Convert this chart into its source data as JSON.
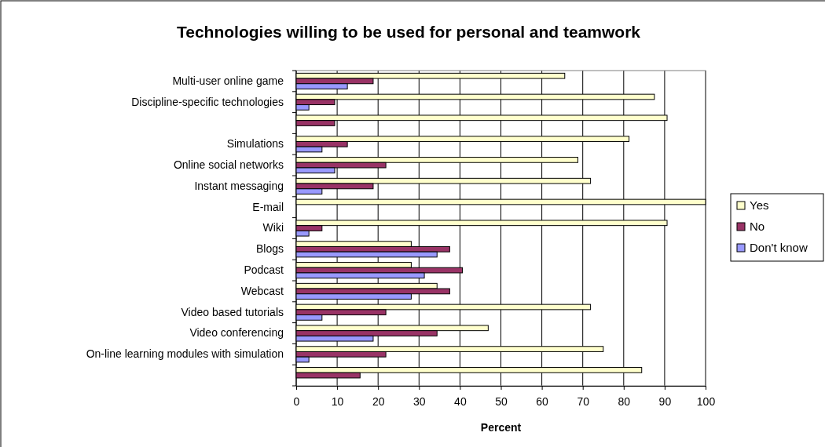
{
  "chart_data": {
    "type": "bar",
    "orientation": "horizontal",
    "title": "Technologies willing to be used for personal and teamwork",
    "xlabel": "Percent",
    "categories": [
      "Multi-user online game",
      "Discipline-specific technologies",
      null,
      "Simulations",
      "Online social networks",
      "Instant messaging",
      "E-mail",
      "Wiki",
      "Blogs",
      "Podcast",
      "Webcast",
      "Video based tutorials",
      "Video conferencing",
      "On-line learning modules with simulation",
      null
    ],
    "series": [
      {
        "name": "Yes",
        "color": "#ffffcc",
        "values": [
          65.6,
          87.5,
          90.6,
          81.3,
          68.8,
          71.9,
          100,
          90.6,
          28.1,
          28.1,
          34.4,
          71.9,
          46.9,
          75,
          84.4
        ]
      },
      {
        "name": "No",
        "color": "#993366",
        "values": [
          18.8,
          9.4,
          9.4,
          12.5,
          21.9,
          18.8,
          0,
          6.3,
          37.5,
          40.6,
          37.5,
          21.9,
          34.4,
          21.9,
          15.6
        ]
      },
      {
        "name": "Don't know",
        "color": "#9999ff",
        "values": [
          12.5,
          3.1,
          0,
          6.3,
          9.4,
          6.3,
          0,
          3.1,
          34.4,
          31.3,
          28.1,
          6.3,
          18.8,
          3.1,
          0
        ]
      }
    ],
    "xlim": [
      0,
      100
    ],
    "xticks": [
      0,
      10,
      20,
      30,
      40,
      50,
      60,
      70,
      80,
      90,
      100
    ],
    "grid": "x",
    "legend": "right"
  }
}
